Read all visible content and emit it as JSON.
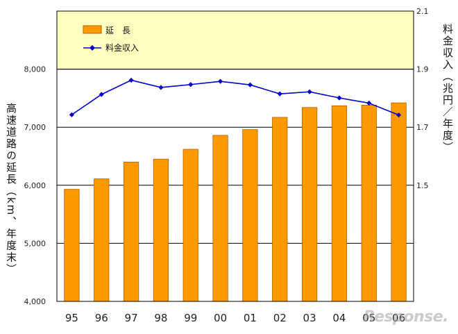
{
  "colors": {
    "bar_fill": "#ff9900",
    "bar_stroke": "#b06000",
    "line": "#0000cc",
    "plot_bg": "#ffffc0",
    "grid": "#000000"
  },
  "watermark": "Response.",
  "chart_data": {
    "type": "bar",
    "categories": [
      "95",
      "96",
      "97",
      "98",
      "99",
      "00",
      "01",
      "02",
      "03",
      "04",
      "05",
      "06"
    ],
    "series": [
      {
        "name": "延　長",
        "type": "bar",
        "axis": "left",
        "values": [
          5930,
          6110,
          6400,
          6450,
          6620,
          6860,
          6960,
          7170,
          7340,
          7370,
          7380,
          7420
        ]
      },
      {
        "name": "料金収入",
        "type": "line",
        "axis": "right",
        "marker": "diamond",
        "values": [
          1.743,
          1.813,
          1.862,
          1.837,
          1.847,
          1.858,
          1.846,
          1.815,
          1.822,
          1.801,
          1.783,
          1.742
        ]
      }
    ],
    "ylabel": "高速道路の延長（km、年度末）",
    "y2label": "料金収入（兆円／年度）",
    "ylim": [
      4000,
      9000
    ],
    "y2lim": [
      1.1,
      2.1
    ],
    "yticks": [
      "4,000",
      "5,000",
      "6,000",
      "7,000",
      "8,000"
    ],
    "y2ticks": [
      "2.1",
      "1.9",
      "1.7",
      "1.5"
    ],
    "legend": "top-left",
    "grid": true
  }
}
